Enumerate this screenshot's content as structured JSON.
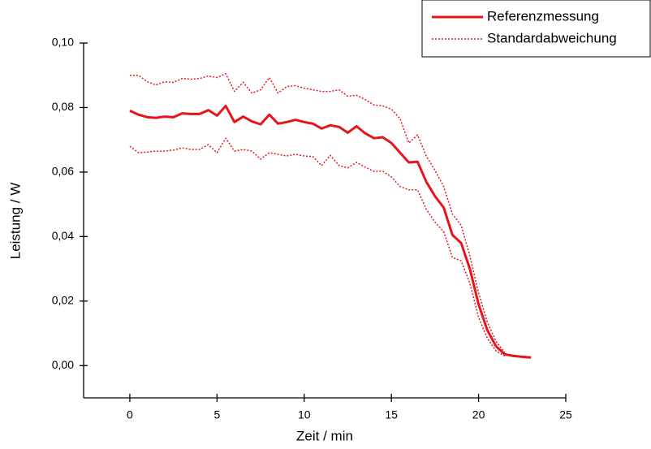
{
  "chart_data": {
    "type": "line",
    "xlabel": "Zeit / min",
    "ylabel": "Leistung / W",
    "x": [
      0,
      0.5,
      1,
      1.5,
      2,
      2.5,
      3,
      3.5,
      4,
      4.5,
      5,
      5.5,
      6,
      6.5,
      7,
      7.5,
      8,
      8.5,
      9,
      9.5,
      10,
      10.5,
      11,
      11.5,
      12,
      12.5,
      13,
      13.5,
      14,
      14.5,
      15,
      15.5,
      16,
      16.5,
      17,
      17.5,
      18,
      18.5,
      19,
      19.5,
      20,
      20.5,
      21,
      21.5,
      22,
      23
    ],
    "series": [
      {
        "name": "Referenzmessung",
        "color": "#e8141c",
        "style": "solid",
        "values": [
          0.079,
          0.0778,
          0.077,
          0.0768,
          0.0772,
          0.077,
          0.0782,
          0.078,
          0.078,
          0.0792,
          0.0775,
          0.0805,
          0.0755,
          0.0772,
          0.0757,
          0.0748,
          0.0778,
          0.075,
          0.0755,
          0.0762,
          0.0755,
          0.075,
          0.0735,
          0.0745,
          0.074,
          0.0722,
          0.0742,
          0.072,
          0.0705,
          0.0708,
          0.069,
          0.066,
          0.063,
          0.0632,
          0.057,
          0.0525,
          0.049,
          0.0405,
          0.038,
          0.03,
          0.019,
          0.011,
          0.006,
          0.0035,
          0.003,
          0.0025
        ]
      },
      {
        "name": "Standardabweichung",
        "color": "#e8141c",
        "style": "dotted",
        "upper": [
          0.09,
          0.09,
          0.088,
          0.087,
          0.088,
          0.0878,
          0.089,
          0.0888,
          0.089,
          0.0898,
          0.0893,
          0.0905,
          0.085,
          0.0878,
          0.0845,
          0.0855,
          0.0893,
          0.0845,
          0.0865,
          0.0868,
          0.086,
          0.0855,
          0.085,
          0.085,
          0.0855,
          0.0835,
          0.0838,
          0.0825,
          0.0808,
          0.0805,
          0.0795,
          0.0765,
          0.069,
          0.0715,
          0.065,
          0.0605,
          0.0555,
          0.047,
          0.0435,
          0.034,
          0.0225,
          0.0135,
          0.0075,
          0.004,
          null,
          null
        ],
        "lower": [
          0.068,
          0.066,
          0.0662,
          0.0665,
          0.0665,
          0.0668,
          0.0675,
          0.067,
          0.067,
          0.0685,
          0.066,
          0.0705,
          0.0665,
          0.067,
          0.0665,
          0.064,
          0.066,
          0.0655,
          0.065,
          0.0655,
          0.065,
          0.0648,
          0.062,
          0.0652,
          0.062,
          0.0613,
          0.063,
          0.0615,
          0.0602,
          0.0603,
          0.0585,
          0.0555,
          0.0545,
          0.0545,
          0.0485,
          0.0445,
          0.0415,
          0.0335,
          0.0325,
          0.0255,
          0.015,
          0.0085,
          0.0045,
          0.003,
          null,
          null
        ]
      }
    ],
    "xlim": [
      -2.65,
      25
    ],
    "ylim": [
      -0.01,
      0.1
    ],
    "xticks": [
      0,
      5,
      10,
      15,
      20,
      25
    ],
    "yticks": [
      {
        "value": 0,
        "label": "0,00"
      },
      {
        "value": 0.02,
        "label": "0,02"
      },
      {
        "value": 0.04,
        "label": "0,04"
      },
      {
        "value": 0.06,
        "label": "0,06"
      },
      {
        "value": 0.08,
        "label": "0,08"
      },
      {
        "value": 0.1,
        "label": "0,10"
      }
    ],
    "grid": false,
    "legend": "upper right"
  }
}
